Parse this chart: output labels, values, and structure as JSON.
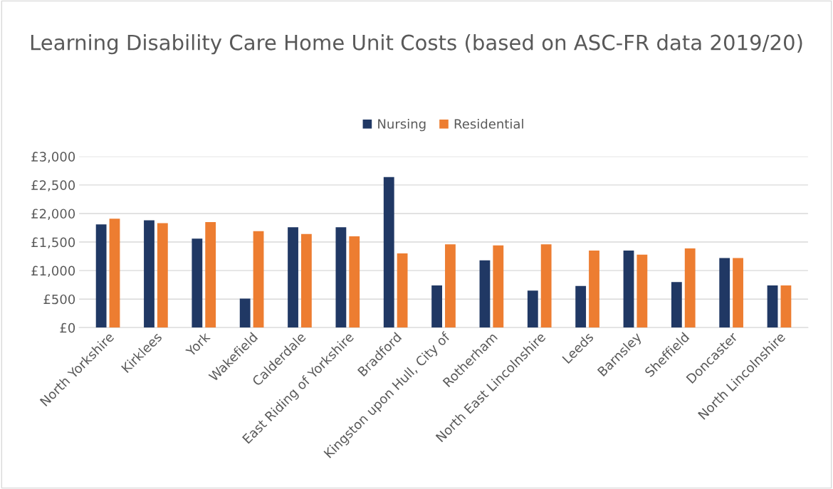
{
  "chart_data": {
    "type": "bar",
    "title": "Learning Disability Care Home Unit Costs (based on ASC-FR data 2019/20)",
    "categories": [
      "North Yorkshire",
      "Kirklees",
      "York",
      "Wakefield",
      "Calderdale",
      "East Riding of Yorkshire",
      "Bradford",
      "Kingston upon Hull, City of",
      "Rotherham",
      "North East Lincolnshire",
      "Leeds",
      "Barnsley",
      "Sheffield",
      "Doncaster",
      "North Lincolnshire"
    ],
    "series": [
      {
        "name": "Nursing",
        "color": "#203864",
        "values": [
          1810,
          1880,
          1560,
          510,
          1760,
          1760,
          2640,
          740,
          1180,
          650,
          730,
          1350,
          800,
          1220,
          740
        ]
      },
      {
        "name": "Residential",
        "color": "#ed7d31",
        "values": [
          1910,
          1830,
          1850,
          1690,
          1640,
          1600,
          1300,
          1460,
          1440,
          1460,
          1350,
          1280,
          1390,
          1220,
          740
        ]
      }
    ],
    "ylim": [
      0,
      3000
    ],
    "yticks": [
      {
        "value": 0,
        "label": "£0"
      },
      {
        "value": 500,
        "label": "£500"
      },
      {
        "value": 1000,
        "label": "£1,000"
      },
      {
        "value": 1500,
        "label": "£1,500"
      },
      {
        "value": 2000,
        "label": "£2,000"
      },
      {
        "value": 2500,
        "label": "£2,500"
      },
      {
        "value": 3000,
        "label": "£3,000"
      }
    ],
    "grid": "y",
    "legend": "top"
  }
}
